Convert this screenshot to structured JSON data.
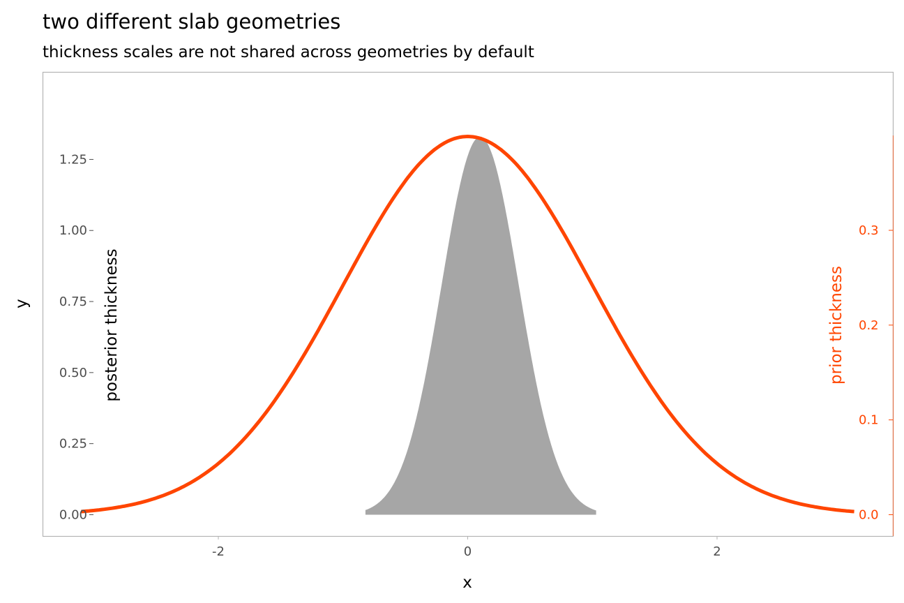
{
  "chart_data": {
    "type": "area",
    "title": "two different slab geometries",
    "subtitle": "thickness scales are not shared across geometries by default",
    "xlabel": "x",
    "ylabel": "y",
    "xlim": [
      -3.41,
      3.41
    ],
    "x_ticks": [
      -2,
      0,
      2
    ],
    "x_tick_labels": [
      "-2",
      "0",
      "2"
    ],
    "left_axis": {
      "title": "posterior thickness",
      "ylim": [
        -0.075,
        1.558
      ],
      "ticks": [
        0,
        0.25,
        0.5,
        0.75,
        1.0,
        1.25
      ],
      "tick_labels": [
        "0.00",
        "0.25",
        "0.50",
        "0.75",
        "1.00",
        "1.25"
      ]
    },
    "right_axis": {
      "title": "prior thickness",
      "ticks": [
        0,
        0.1,
        0.2,
        0.3
      ],
      "tick_labels": [
        "0.0",
        "0.1",
        "0.2",
        "0.3"
      ],
      "color": "#FF4500"
    },
    "series": [
      {
        "name": "posterior",
        "geometry": "slab (filled)",
        "distribution": "normal",
        "mean": 0.1,
        "sd": 0.31,
        "x_range": [
          -0.82,
          1.03
        ],
        "peak_thickness": 1.33,
        "color": "#A6A6A6"
      },
      {
        "name": "prior",
        "geometry": "slab (line)",
        "distribution": "normal",
        "mean": 0,
        "sd": 1,
        "x_range": [
          -3.1,
          3.1
        ],
        "peak_thickness": 0.399,
        "color": "#FF4500"
      }
    ],
    "grid": false
  }
}
